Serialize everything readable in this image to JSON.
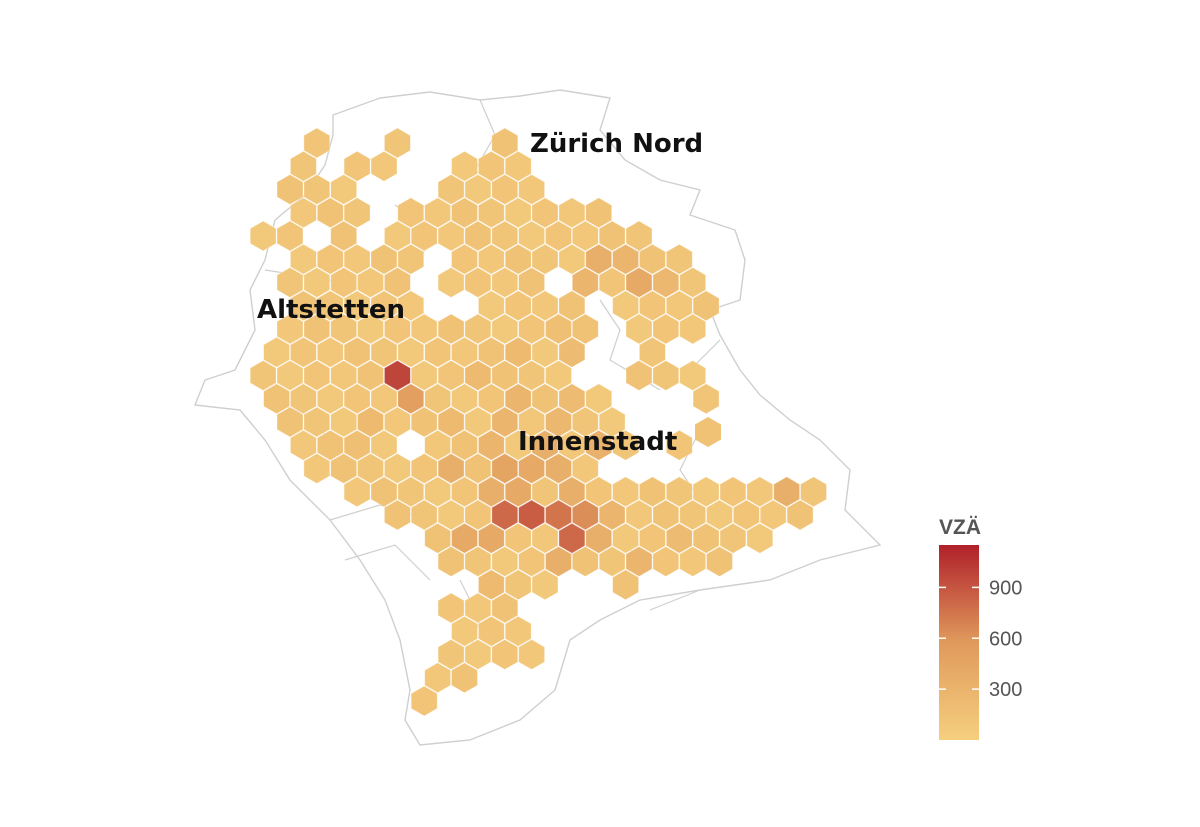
{
  "map": {
    "region_labels": [
      {
        "text": "Zürich Nord"
      },
      {
        "text": "Altstetten"
      },
      {
        "text": "Innenstadt"
      }
    ],
    "legend": {
      "title": "VZÄ",
      "min": 0,
      "max": 1150,
      "ticks": [
        "300",
        "600",
        "900"
      ],
      "tick_values": [
        300,
        600,
        900
      ],
      "color_low": "#f5cf7e",
      "color_mid": "#e09a5c",
      "color_high": "#b0202a"
    },
    "colors": {
      "low": "#f5cf7e",
      "border": "#cfcfcf"
    }
  }
}
